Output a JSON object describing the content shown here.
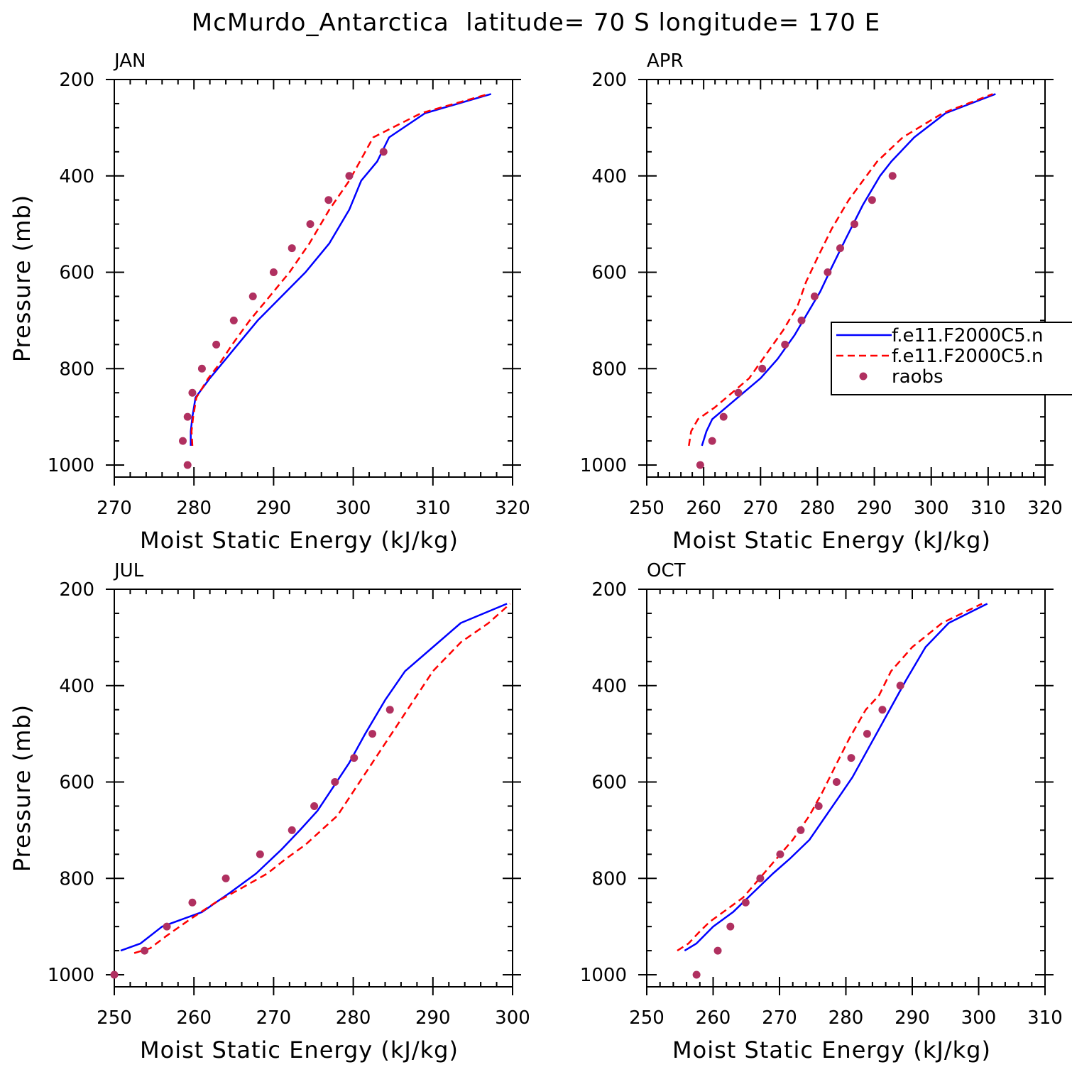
{
  "page": {
    "title": "McMurdo_Antarctica  latitude= 70 S longitude= 170 E"
  },
  "colors": {
    "model_1": "#0000ff",
    "model_2": "#ff0000",
    "raobs": "#b03060",
    "axis": "#000000"
  },
  "legend": {
    "placement": "right-middle of APR panel",
    "entries": [
      {
        "label": "f.e11.F2000C5.n",
        "style": "solid-line",
        "color": "#0000ff"
      },
      {
        "label": "f.e11.F2000C5.n",
        "style": "dashed-line",
        "color": "#ff0000"
      },
      {
        "label": "raobs",
        "style": "dot",
        "color": "#b03060"
      }
    ]
  },
  "chart_data": [
    {
      "type": "line",
      "title": "JAN",
      "xlabel": "Moist Static Energy (kJ/kg)",
      "ylabel": "Pressure (mb)",
      "xlim": [
        270,
        320
      ],
      "ylim": [
        1025,
        200
      ],
      "y_inverted": true,
      "xticks": [
        270,
        280,
        290,
        300,
        310,
        320
      ],
      "yticks": [
        200,
        400,
        600,
        800,
        1000
      ],
      "show_ylabel": true,
      "show_legend": false,
      "series": [
        {
          "style": "solid",
          "color": "#0000ff",
          "points": [
            [
              279.6,
              960
            ],
            [
              279.6,
              930
            ],
            [
              279.8,
              900
            ],
            [
              280.2,
              860
            ],
            [
              282,
              820
            ],
            [
              283.5,
              790
            ],
            [
              285.5,
              750
            ],
            [
              288,
              700
            ],
            [
              291,
              650
            ],
            [
              294,
              600
            ],
            [
              297,
              540
            ],
            [
              299.5,
              470
            ],
            [
              301,
              410
            ],
            [
              303,
              370
            ],
            [
              304.5,
              320
            ],
            [
              309,
              270
            ],
            [
              317.3,
              230
            ]
          ]
        },
        {
          "style": "dashed",
          "color": "#ff0000",
          "points": [
            [
              279.8,
              960
            ],
            [
              279.7,
              930
            ],
            [
              279.9,
              900
            ],
            [
              280.3,
              860
            ],
            [
              281.8,
              820
            ],
            [
              283.2,
              790
            ],
            [
              284.8,
              750
            ],
            [
              287,
              700
            ],
            [
              289.5,
              650
            ],
            [
              292,
              600
            ],
            [
              294.5,
              540
            ],
            [
              297,
              470
            ],
            [
              299.5,
              410
            ],
            [
              302.5,
              320
            ],
            [
              308.5,
              270
            ],
            [
              317,
              230
            ]
          ]
        },
        {
          "style": "dots",
          "color": "#b03060",
          "points": [
            [
              279.2,
              1000
            ],
            [
              278.6,
              950
            ],
            [
              279.2,
              900
            ],
            [
              279.8,
              850
            ],
            [
              281,
              800
            ],
            [
              282.8,
              750
            ],
            [
              285,
              700
            ],
            [
              287.4,
              650
            ],
            [
              290,
              600
            ],
            [
              292.3,
              550
            ],
            [
              294.6,
              500
            ],
            [
              296.9,
              450
            ],
            [
              299.5,
              400
            ],
            [
              303.8,
              350
            ]
          ]
        }
      ]
    },
    {
      "type": "line",
      "title": "APR",
      "xlabel": "Moist Static Energy (kJ/kg)",
      "ylabel": "",
      "xlim": [
        250,
        320
      ],
      "ylim": [
        1025,
        200
      ],
      "y_inverted": true,
      "xticks": [
        250,
        260,
        270,
        280,
        290,
        300,
        310,
        320
      ],
      "yticks": [
        200,
        400,
        600,
        800,
        1000
      ],
      "show_ylabel": false,
      "show_legend": true,
      "series": [
        {
          "style": "solid",
          "color": "#0000ff",
          "points": [
            [
              259.7,
              960
            ],
            [
              260.5,
              930
            ],
            [
              261.5,
              905
            ],
            [
              264,
              880
            ],
            [
              267,
              850
            ],
            [
              270,
              820
            ],
            [
              273,
              780
            ],
            [
              276,
              730
            ],
            [
              278.5,
              680
            ],
            [
              280.5,
              640
            ],
            [
              282.5,
              590
            ],
            [
              285,
              530
            ],
            [
              288,
              460
            ],
            [
              291,
              400
            ],
            [
              293,
              370
            ],
            [
              297,
              320
            ],
            [
              302.5,
              270
            ],
            [
              311.3,
              230
            ]
          ]
        },
        {
          "style": "dashed",
          "color": "#ff0000",
          "points": [
            [
              257.4,
              960
            ],
            [
              257.8,
              930
            ],
            [
              259,
              905
            ],
            [
              262,
              880
            ],
            [
              265,
              850
            ],
            [
              268,
              820
            ],
            [
              271,
              770
            ],
            [
              274,
              720
            ],
            [
              276.5,
              670
            ],
            [
              278,
              620
            ],
            [
              280,
              570
            ],
            [
              282.5,
              510
            ],
            [
              285.5,
              450
            ],
            [
              288,
              410
            ],
            [
              290.5,
              370
            ],
            [
              295,
              320
            ],
            [
              302,
              270
            ],
            [
              310.8,
              230
            ]
          ]
        },
        {
          "style": "dots",
          "color": "#b03060",
          "points": [
            [
              259.4,
              1000
            ],
            [
              261.5,
              950
            ],
            [
              263.5,
              900
            ],
            [
              266.1,
              850
            ],
            [
              270.3,
              800
            ],
            [
              274.3,
              750
            ],
            [
              277.2,
              700
            ],
            [
              279.5,
              650
            ],
            [
              281.8,
              600
            ],
            [
              284,
              550
            ],
            [
              286.5,
              500
            ],
            [
              289.6,
              450
            ],
            [
              293.2,
              400
            ]
          ]
        }
      ]
    },
    {
      "type": "line",
      "title": "JUL",
      "xlabel": "Moist Static Energy (kJ/kg)",
      "ylabel": "Pressure (mb)",
      "xlim": [
        250,
        300
      ],
      "ylim": [
        1025,
        200
      ],
      "y_inverted": true,
      "xticks": [
        250,
        260,
        270,
        280,
        290,
        300
      ],
      "yticks": [
        200,
        400,
        600,
        800,
        1000
      ],
      "show_ylabel": true,
      "show_legend": false,
      "series": [
        {
          "style": "solid",
          "color": "#0000ff",
          "points": [
            [
              250.8,
              950
            ],
            [
              253.3,
              935
            ],
            [
              256,
              900
            ],
            [
              261,
              870
            ],
            [
              264.5,
              830
            ],
            [
              267.8,
              790
            ],
            [
              271,
              740
            ],
            [
              273.3,
              700
            ],
            [
              275.5,
              660
            ],
            [
              277.5,
              610
            ],
            [
              279.5,
              560
            ],
            [
              281.5,
              500
            ],
            [
              284,
              430
            ],
            [
              286.5,
              370
            ],
            [
              290,
              320
            ],
            [
              293.5,
              270
            ],
            [
              299.3,
              230
            ]
          ]
        },
        {
          "style": "dashed",
          "color": "#ff0000",
          "points": [
            [
              252.5,
              955
            ],
            [
              254.5,
              945
            ],
            [
              256.5,
              920
            ],
            [
              259.5,
              885
            ],
            [
              262.7,
              850
            ],
            [
              266,
              820
            ],
            [
              269.2,
              790
            ],
            [
              271.5,
              760
            ],
            [
              274,
              730
            ],
            [
              276,
              700
            ],
            [
              278,
              670
            ],
            [
              280,
              620
            ],
            [
              282,
              570
            ],
            [
              284,
              520
            ],
            [
              286,
              470
            ],
            [
              288,
              420
            ],
            [
              290,
              370
            ],
            [
              293.5,
              310
            ],
            [
              297,
              270
            ],
            [
              299.7,
              230
            ]
          ]
        },
        {
          "style": "dots",
          "color": "#b03060",
          "points": [
            [
              250,
              1000
            ],
            [
              253.8,
              950
            ],
            [
              256.6,
              900
            ],
            [
              259.8,
              850
            ],
            [
              264,
              800
            ],
            [
              268.3,
              750
            ],
            [
              272.3,
              700
            ],
            [
              275.1,
              650
            ],
            [
              277.7,
              600
            ],
            [
              280.1,
              550
            ],
            [
              282.4,
              500
            ],
            [
              284.6,
              450
            ]
          ]
        }
      ]
    },
    {
      "type": "line",
      "title": "OCT",
      "xlabel": "Moist Static Energy (kJ/kg)",
      "ylabel": "",
      "xlim": [
        250,
        310
      ],
      "ylim": [
        1025,
        200
      ],
      "y_inverted": true,
      "xticks": [
        250,
        260,
        270,
        280,
        290,
        300,
        310
      ],
      "yticks": [
        200,
        400,
        600,
        800,
        1000
      ],
      "show_ylabel": false,
      "show_legend": false,
      "series": [
        {
          "style": "solid",
          "color": "#0000ff",
          "points": [
            [
              255.7,
              950
            ],
            [
              257.5,
              935
            ],
            [
              260,
              900
            ],
            [
              263,
              870
            ],
            [
              266,
              830
            ],
            [
              269,
              790
            ],
            [
              271.5,
              760
            ],
            [
              274.5,
              720
            ],
            [
              277,
              670
            ],
            [
              279,
              630
            ],
            [
              281,
              590
            ],
            [
              283,
              540
            ],
            [
              285,
              490
            ],
            [
              287,
              440
            ],
            [
              289,
              390
            ],
            [
              292,
              320
            ],
            [
              295.5,
              270
            ],
            [
              301.3,
              230
            ]
          ]
        },
        {
          "style": "dashed",
          "color": "#ff0000",
          "points": [
            [
              254.6,
              950
            ],
            [
              256.3,
              935
            ],
            [
              258,
              910
            ],
            [
              259.5,
              890
            ],
            [
              262.5,
              860
            ],
            [
              264.5,
              840
            ],
            [
              267,
              800
            ],
            [
              269.5,
              760
            ],
            [
              272,
              720
            ],
            [
              274.5,
              670
            ],
            [
              276.5,
              620
            ],
            [
              278.3,
              570
            ],
            [
              280.5,
              510
            ],
            [
              283,
              450
            ],
            [
              285,
              420
            ],
            [
              286.8,
              370
            ],
            [
              290,
              320
            ],
            [
              294.5,
              270
            ],
            [
              300.5,
              230
            ]
          ]
        },
        {
          "style": "dots",
          "color": "#b03060",
          "points": [
            [
              257.5,
              1000
            ],
            [
              260.7,
              950
            ],
            [
              262.6,
              900
            ],
            [
              264.9,
              850
            ],
            [
              267.1,
              800
            ],
            [
              270.1,
              750
            ],
            [
              273.2,
              700
            ],
            [
              275.9,
              650
            ],
            [
              278.6,
              600
            ],
            [
              280.8,
              550
            ],
            [
              283.2,
              500
            ],
            [
              285.5,
              450
            ],
            [
              288.2,
              400
            ]
          ]
        }
      ]
    }
  ]
}
